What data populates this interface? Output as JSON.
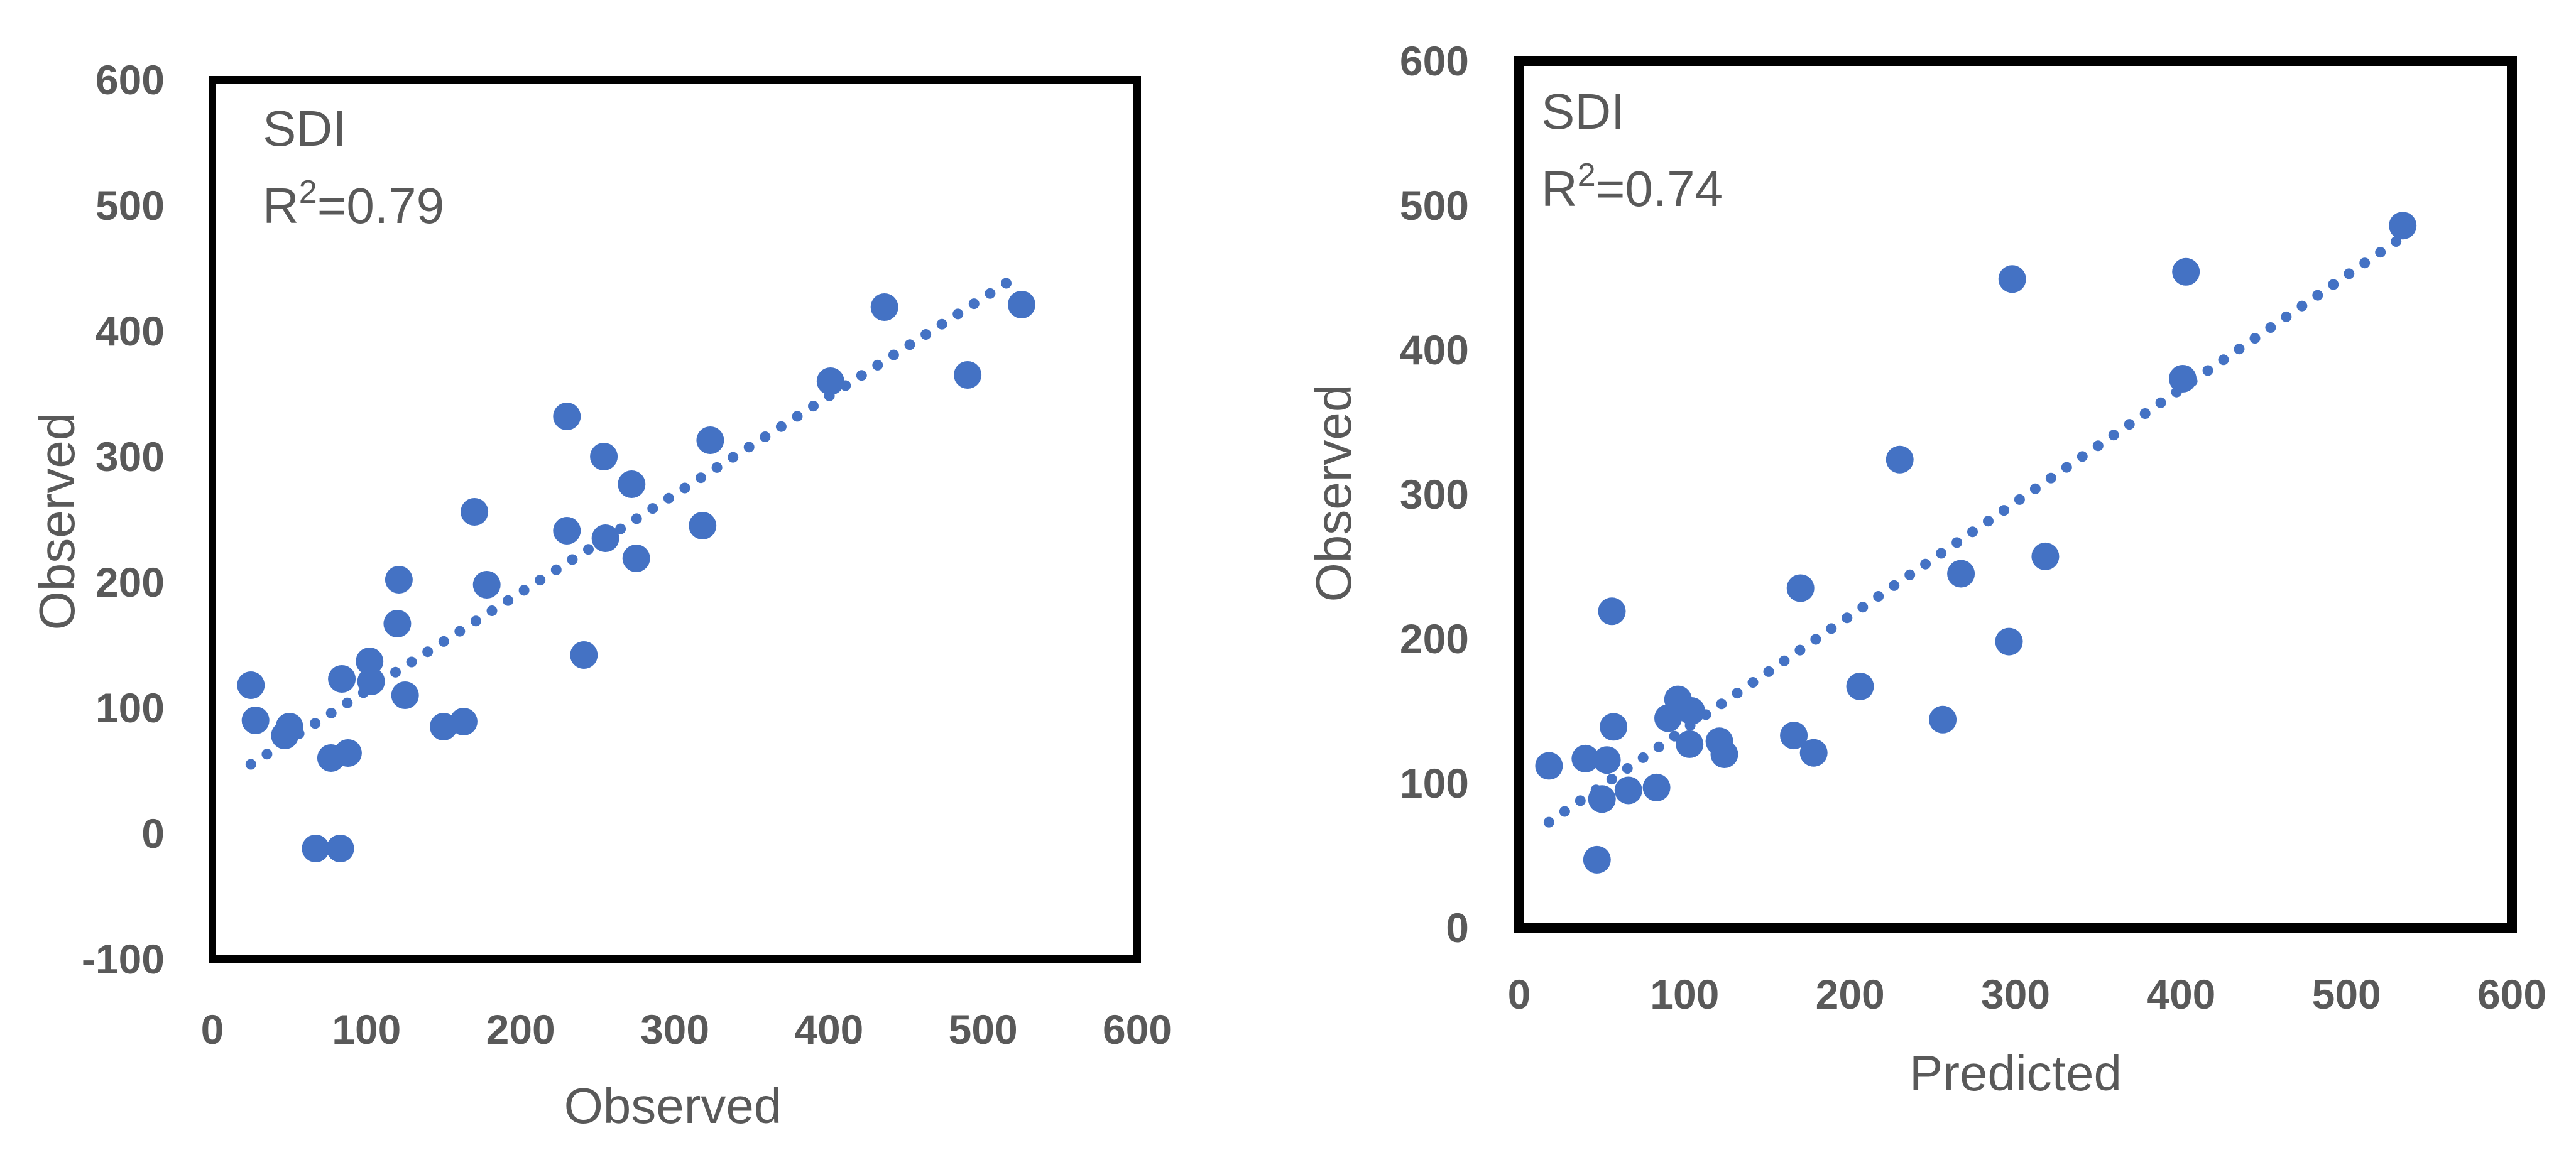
{
  "chart_data": [
    {
      "type": "scatter",
      "annotation": {
        "label": "SDI",
        "r2_prefix": "R",
        "r2_sup": "2",
        "r2_value": "=0.79"
      },
      "xlabel": "Observed",
      "ylabel": "Observed",
      "xlim": [
        0,
        600
      ],
      "ylim": [
        -100,
        600
      ],
      "xticks": [
        0,
        100,
        200,
        300,
        400,
        500,
        600
      ],
      "yticks": [
        -100,
        0,
        100,
        200,
        300,
        400,
        500,
        600
      ],
      "trendline": {
        "style": "dotted",
        "color": "#4472C4",
        "start": [
          25,
          55
        ],
        "end": [
          515,
          438
        ]
      },
      "points": [
        {
          "x": 25,
          "y": 118
        },
        {
          "x": 28,
          "y": 90
        },
        {
          "x": 47,
          "y": 78
        },
        {
          "x": 50,
          "y": 85
        },
        {
          "x": 67,
          "y": -12
        },
        {
          "x": 77,
          "y": 60
        },
        {
          "x": 83,
          "y": -12
        },
        {
          "x": 84,
          "y": 123
        },
        {
          "x": 88,
          "y": 64
        },
        {
          "x": 102,
          "y": 137
        },
        {
          "x": 103,
          "y": 121
        },
        {
          "x": 120,
          "y": 167
        },
        {
          "x": 121,
          "y": 202
        },
        {
          "x": 125,
          "y": 110
        },
        {
          "x": 150,
          "y": 85
        },
        {
          "x": 163,
          "y": 89
        },
        {
          "x": 170,
          "y": 256
        },
        {
          "x": 178,
          "y": 198
        },
        {
          "x": 230,
          "y": 332
        },
        {
          "x": 230,
          "y": 241
        },
        {
          "x": 241,
          "y": 142
        },
        {
          "x": 254,
          "y": 300
        },
        {
          "x": 255,
          "y": 235
        },
        {
          "x": 272,
          "y": 278
        },
        {
          "x": 275,
          "y": 219
        },
        {
          "x": 318,
          "y": 245
        },
        {
          "x": 323,
          "y": 313
        },
        {
          "x": 401,
          "y": 360
        },
        {
          "x": 436,
          "y": 419
        },
        {
          "x": 490,
          "y": 365
        },
        {
          "x": 525,
          "y": 421
        }
      ]
    },
    {
      "type": "scatter",
      "annotation": {
        "label": "SDI",
        "r2_prefix": "R",
        "r2_sup": "2",
        "r2_value": "=0.74"
      },
      "xlabel": "Predicted",
      "ylabel": "Observed",
      "xlim": [
        0,
        600
      ],
      "ylim": [
        0,
        600
      ],
      "xticks": [
        0,
        100,
        200,
        300,
        400,
        500,
        600
      ],
      "yticks": [
        0,
        100,
        200,
        300,
        400,
        500,
        600
      ],
      "trendline": {
        "style": "dotted",
        "color": "#4472C4",
        "start": [
          18,
          73
        ],
        "end": [
          530,
          475
        ]
      },
      "points": [
        {
          "x": 18,
          "y": 112
        },
        {
          "x": 40,
          "y": 117
        },
        {
          "x": 47,
          "y": 47
        },
        {
          "x": 50,
          "y": 89
        },
        {
          "x": 53,
          "y": 116
        },
        {
          "x": 56,
          "y": 219
        },
        {
          "x": 57,
          "y": 139
        },
        {
          "x": 66,
          "y": 95
        },
        {
          "x": 83,
          "y": 97
        },
        {
          "x": 90,
          "y": 145
        },
        {
          "x": 96,
          "y": 158
        },
        {
          "x": 103,
          "y": 127
        },
        {
          "x": 104,
          "y": 150
        },
        {
          "x": 121,
          "y": 129
        },
        {
          "x": 124,
          "y": 120
        },
        {
          "x": 166,
          "y": 133
        },
        {
          "x": 170,
          "y": 235
        },
        {
          "x": 178,
          "y": 121
        },
        {
          "x": 206,
          "y": 167
        },
        {
          "x": 230,
          "y": 324
        },
        {
          "x": 256,
          "y": 144
        },
        {
          "x": 267,
          "y": 245
        },
        {
          "x": 296,
          "y": 198
        },
        {
          "x": 298,
          "y": 449
        },
        {
          "x": 318,
          "y": 257
        },
        {
          "x": 401,
          "y": 380
        },
        {
          "x": 403,
          "y": 454
        },
        {
          "x": 534,
          "y": 486
        }
      ]
    }
  ],
  "colors": {
    "marker": "#4472C4",
    "text": "#595959",
    "frame": "#000000"
  }
}
